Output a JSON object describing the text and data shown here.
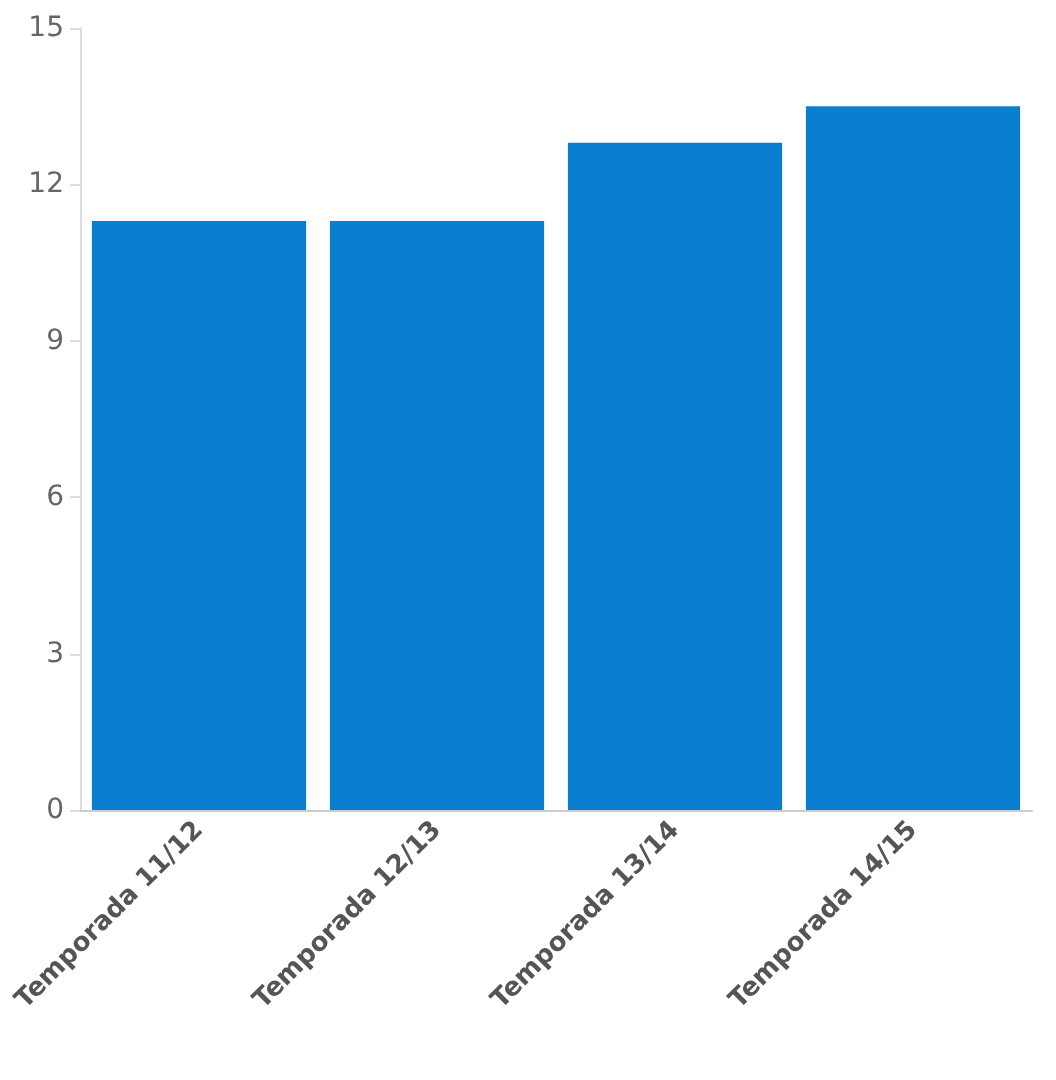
{
  "chart_data": {
    "type": "bar",
    "categories": [
      "Temporada 11/12",
      "Temporada 12/13",
      "Temporada 13/14",
      "Temporada 14/15"
    ],
    "values": [
      11.3,
      11.3,
      12.8,
      13.5
    ],
    "color": "#0a7fd0",
    "ylim": [
      0,
      15
    ],
    "yticks": [
      0,
      3,
      6,
      9,
      12,
      15
    ],
    "grid": false
  }
}
